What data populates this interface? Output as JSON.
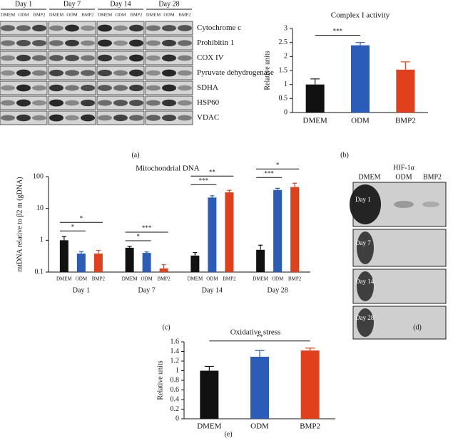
{
  "blot_a": {
    "days": [
      "Day 1",
      "Day 7",
      "Day 14",
      "Day 28"
    ],
    "lanes": [
      "DMEM",
      "ODM",
      "BMP2"
    ],
    "proteins": [
      "Cytochrome c",
      "Prohibitin 1",
      "COX IV",
      "Pyruvate dehydrogenase",
      "SDHA",
      "HSP60",
      "VDAC"
    ],
    "panel_label": "(a)"
  },
  "chart_data": [
    {
      "type": "bar",
      "title": "Complex I activity",
      "ylabel": "Relative units",
      "panel_label": "(b)",
      "categories": [
        "DMEM",
        "ODM",
        "BMP2"
      ],
      "values": [
        1.0,
        2.4,
        1.53
      ],
      "errors": [
        0.2,
        0.1,
        0.28
      ],
      "colors": [
        "#111111",
        "#2a5cb8",
        "#e0401c"
      ],
      "ylim": [
        0,
        3
      ],
      "yticks": [
        0,
        0.5,
        1,
        1.5,
        2,
        2.5,
        3
      ],
      "significance": [
        {
          "label": "***",
          "between": [
            "DMEM",
            "ODM"
          ]
        }
      ]
    },
    {
      "type": "grouped_bar",
      "title": "Mitochondrial DNA",
      "ylabel": "mtDNA relative to β2 m (gDNA)",
      "panel_label": "(c)",
      "categories": [
        "Day 1",
        "Day 7",
        "Day 14",
        "Day 28"
      ],
      "log_scale": true,
      "series": [
        {
          "name": "DMEM",
          "color": "#111111",
          "values": [
            1.0,
            0.58,
            0.33,
            0.5
          ],
          "errors": [
            0.3,
            0.06,
            0.08,
            0.2
          ]
        },
        {
          "name": "ODM",
          "color": "#2a5cb8",
          "values": [
            0.38,
            0.4,
            22,
            38
          ],
          "errors": [
            0.06,
            0.03,
            3,
            5
          ]
        },
        {
          "name": "BMP2",
          "color": "#e0401c",
          "values": [
            0.38,
            0.13,
            32,
            47
          ],
          "errors": [
            0.1,
            0.04,
            5,
            15
          ]
        }
      ],
      "ylim": [
        0.1,
        100
      ],
      "yticks": [
        0.1,
        1,
        10,
        100
      ],
      "significance": [
        [
          {
            "label": "*",
            "between": [
              "DMEM",
              "ODM"
            ]
          },
          {
            "label": "*",
            "between": [
              "DMEM",
              "BMP2"
            ]
          }
        ],
        [
          {
            "label": "*",
            "between": [
              "DMEM",
              "ODM"
            ]
          },
          {
            "label": "***",
            "between": [
              "DMEM",
              "BMP2"
            ]
          }
        ],
        [
          {
            "label": "***",
            "between": [
              "DMEM",
              "ODM"
            ]
          },
          {
            "label": "**",
            "between": [
              "DMEM",
              "BMP2"
            ]
          }
        ],
        [
          {
            "label": "***",
            "between": [
              "DMEM",
              "ODM"
            ]
          },
          {
            "label": "*",
            "between": [
              "DMEM",
              "BMP2"
            ]
          }
        ]
      ]
    },
    {
      "type": "bar",
      "title": "Oxidative stress",
      "ylabel": "Relative units",
      "panel_label": "(e)",
      "categories": [
        "DMEM",
        "ODM",
        "BMP2"
      ],
      "values": [
        1.0,
        1.29,
        1.42
      ],
      "errors": [
        0.09,
        0.13,
        0.05
      ],
      "colors": [
        "#111111",
        "#2a5cb8",
        "#e0401c"
      ],
      "ylim": [
        0,
        1.6
      ],
      "yticks": [
        0,
        0.2,
        0.4,
        0.6,
        0.8,
        1,
        1.2,
        1.4,
        1.6
      ],
      "significance": [
        {
          "label": "**",
          "between": [
            "DMEM",
            "BMP2"
          ]
        }
      ]
    }
  ],
  "blot_d": {
    "columns": [
      "DMEM",
      "HIF-1α",
      "ODM",
      "BMP2"
    ],
    "rows": [
      "Day 1",
      "Day 7",
      "Day 14",
      "Day 28"
    ],
    "panel_label": "(d)"
  }
}
